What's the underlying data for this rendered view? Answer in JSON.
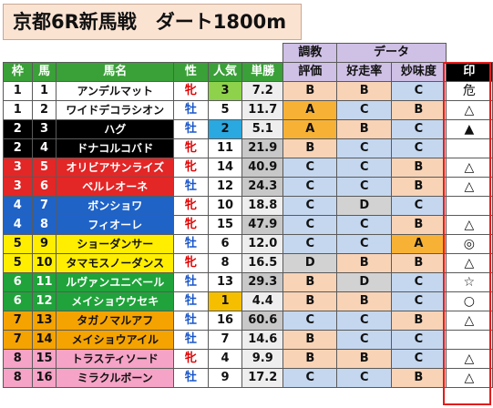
{
  "title": "京都6R新馬戦　ダート1800m",
  "header": {
    "group_chokyo": "調教",
    "group_data": "データ",
    "waku": "枠",
    "uma": "馬",
    "name": "馬名",
    "sex": "性",
    "popularity": "人気",
    "odds": "単勝",
    "eval": "評価",
    "win_rate": "好走率",
    "taste": "妙味度",
    "mark": "印"
  },
  "colors": {
    "waku": {
      "1": "#ffffff",
      "2": "#000000",
      "3": "#e32626",
      "4": "#1f63c7",
      "5": "#ffee00",
      "6": "#1fa33a",
      "7": "#f5a300",
      "8": "#f5a3c6"
    }
  },
  "rows": [
    {
      "waku": "1",
      "uma": "1",
      "name": "アンデルマット",
      "sex": "牝",
      "pop": "3",
      "odds": "7.2",
      "eval": "B",
      "win": "B",
      "taste": "C",
      "mark": "危"
    },
    {
      "waku": "1",
      "uma": "2",
      "name": "ワイドデコラシオン",
      "sex": "牡",
      "pop": "5",
      "odds": "11.7",
      "eval": "A",
      "win": "C",
      "taste": "B",
      "mark": "△"
    },
    {
      "waku": "2",
      "uma": "3",
      "name": "ハグ",
      "sex": "牡",
      "pop": "2",
      "odds": "5.1",
      "eval": "A",
      "win": "B",
      "taste": "C",
      "mark": "▲"
    },
    {
      "waku": "2",
      "uma": "4",
      "name": "ドナコルコバド",
      "sex": "牝",
      "pop": "11",
      "odds": "21.9",
      "eval": "B",
      "win": "C",
      "taste": "C",
      "mark": ""
    },
    {
      "waku": "3",
      "uma": "5",
      "name": "オリビアサンライズ",
      "sex": "牝",
      "pop": "14",
      "odds": "40.9",
      "eval": "C",
      "win": "C",
      "taste": "B",
      "mark": "△"
    },
    {
      "waku": "3",
      "uma": "6",
      "name": "ベルレオーネ",
      "sex": "牡",
      "pop": "12",
      "odds": "24.3",
      "eval": "C",
      "win": "C",
      "taste": "B",
      "mark": "△"
    },
    {
      "waku": "4",
      "uma": "7",
      "name": "ボンショワ",
      "sex": "牝",
      "pop": "10",
      "odds": "18.8",
      "eval": "C",
      "win": "D",
      "taste": "C",
      "mark": ""
    },
    {
      "waku": "4",
      "uma": "8",
      "name": "フィオーレ",
      "sex": "牝",
      "pop": "15",
      "odds": "47.9",
      "eval": "C",
      "win": "C",
      "taste": "B",
      "mark": "△"
    },
    {
      "waku": "5",
      "uma": "9",
      "name": "ショーダンサー",
      "sex": "牡",
      "pop": "6",
      "odds": "12.0",
      "eval": "C",
      "win": "C",
      "taste": "A",
      "mark": "◎"
    },
    {
      "waku": "5",
      "uma": "10",
      "name": "タマモスノーダンス",
      "sex": "牝",
      "pop": "8",
      "odds": "16.5",
      "eval": "D",
      "win": "B",
      "taste": "B",
      "mark": "△"
    },
    {
      "waku": "6",
      "uma": "11",
      "name": "ルヴァンユニベール",
      "sex": "牡",
      "pop": "13",
      "odds": "29.3",
      "eval": "B",
      "win": "D",
      "taste": "C",
      "mark": "☆"
    },
    {
      "waku": "6",
      "uma": "12",
      "name": "メイショウウセキ",
      "sex": "牡",
      "pop": "1",
      "odds": "4.4",
      "eval": "B",
      "win": "B",
      "taste": "C",
      "mark": "○"
    },
    {
      "waku": "7",
      "uma": "13",
      "name": "タガノマルアフ",
      "sex": "牡",
      "pop": "16",
      "odds": "60.6",
      "eval": "C",
      "win": "C",
      "taste": "B",
      "mark": "△"
    },
    {
      "waku": "7",
      "uma": "14",
      "name": "メイショウアイル",
      "sex": "牡",
      "pop": "7",
      "odds": "14.6",
      "eval": "B",
      "win": "C",
      "taste": "C",
      "mark": ""
    },
    {
      "waku": "8",
      "uma": "15",
      "name": "トラスティソード",
      "sex": "牝",
      "pop": "4",
      "odds": "9.9",
      "eval": "B",
      "win": "B",
      "taste": "C",
      "mark": "△"
    },
    {
      "waku": "8",
      "uma": "16",
      "name": "ミラクルボーン",
      "sex": "牡",
      "pop": "9",
      "odds": "17.2",
      "eval": "C",
      "win": "C",
      "taste": "B",
      "mark": "△"
    }
  ]
}
